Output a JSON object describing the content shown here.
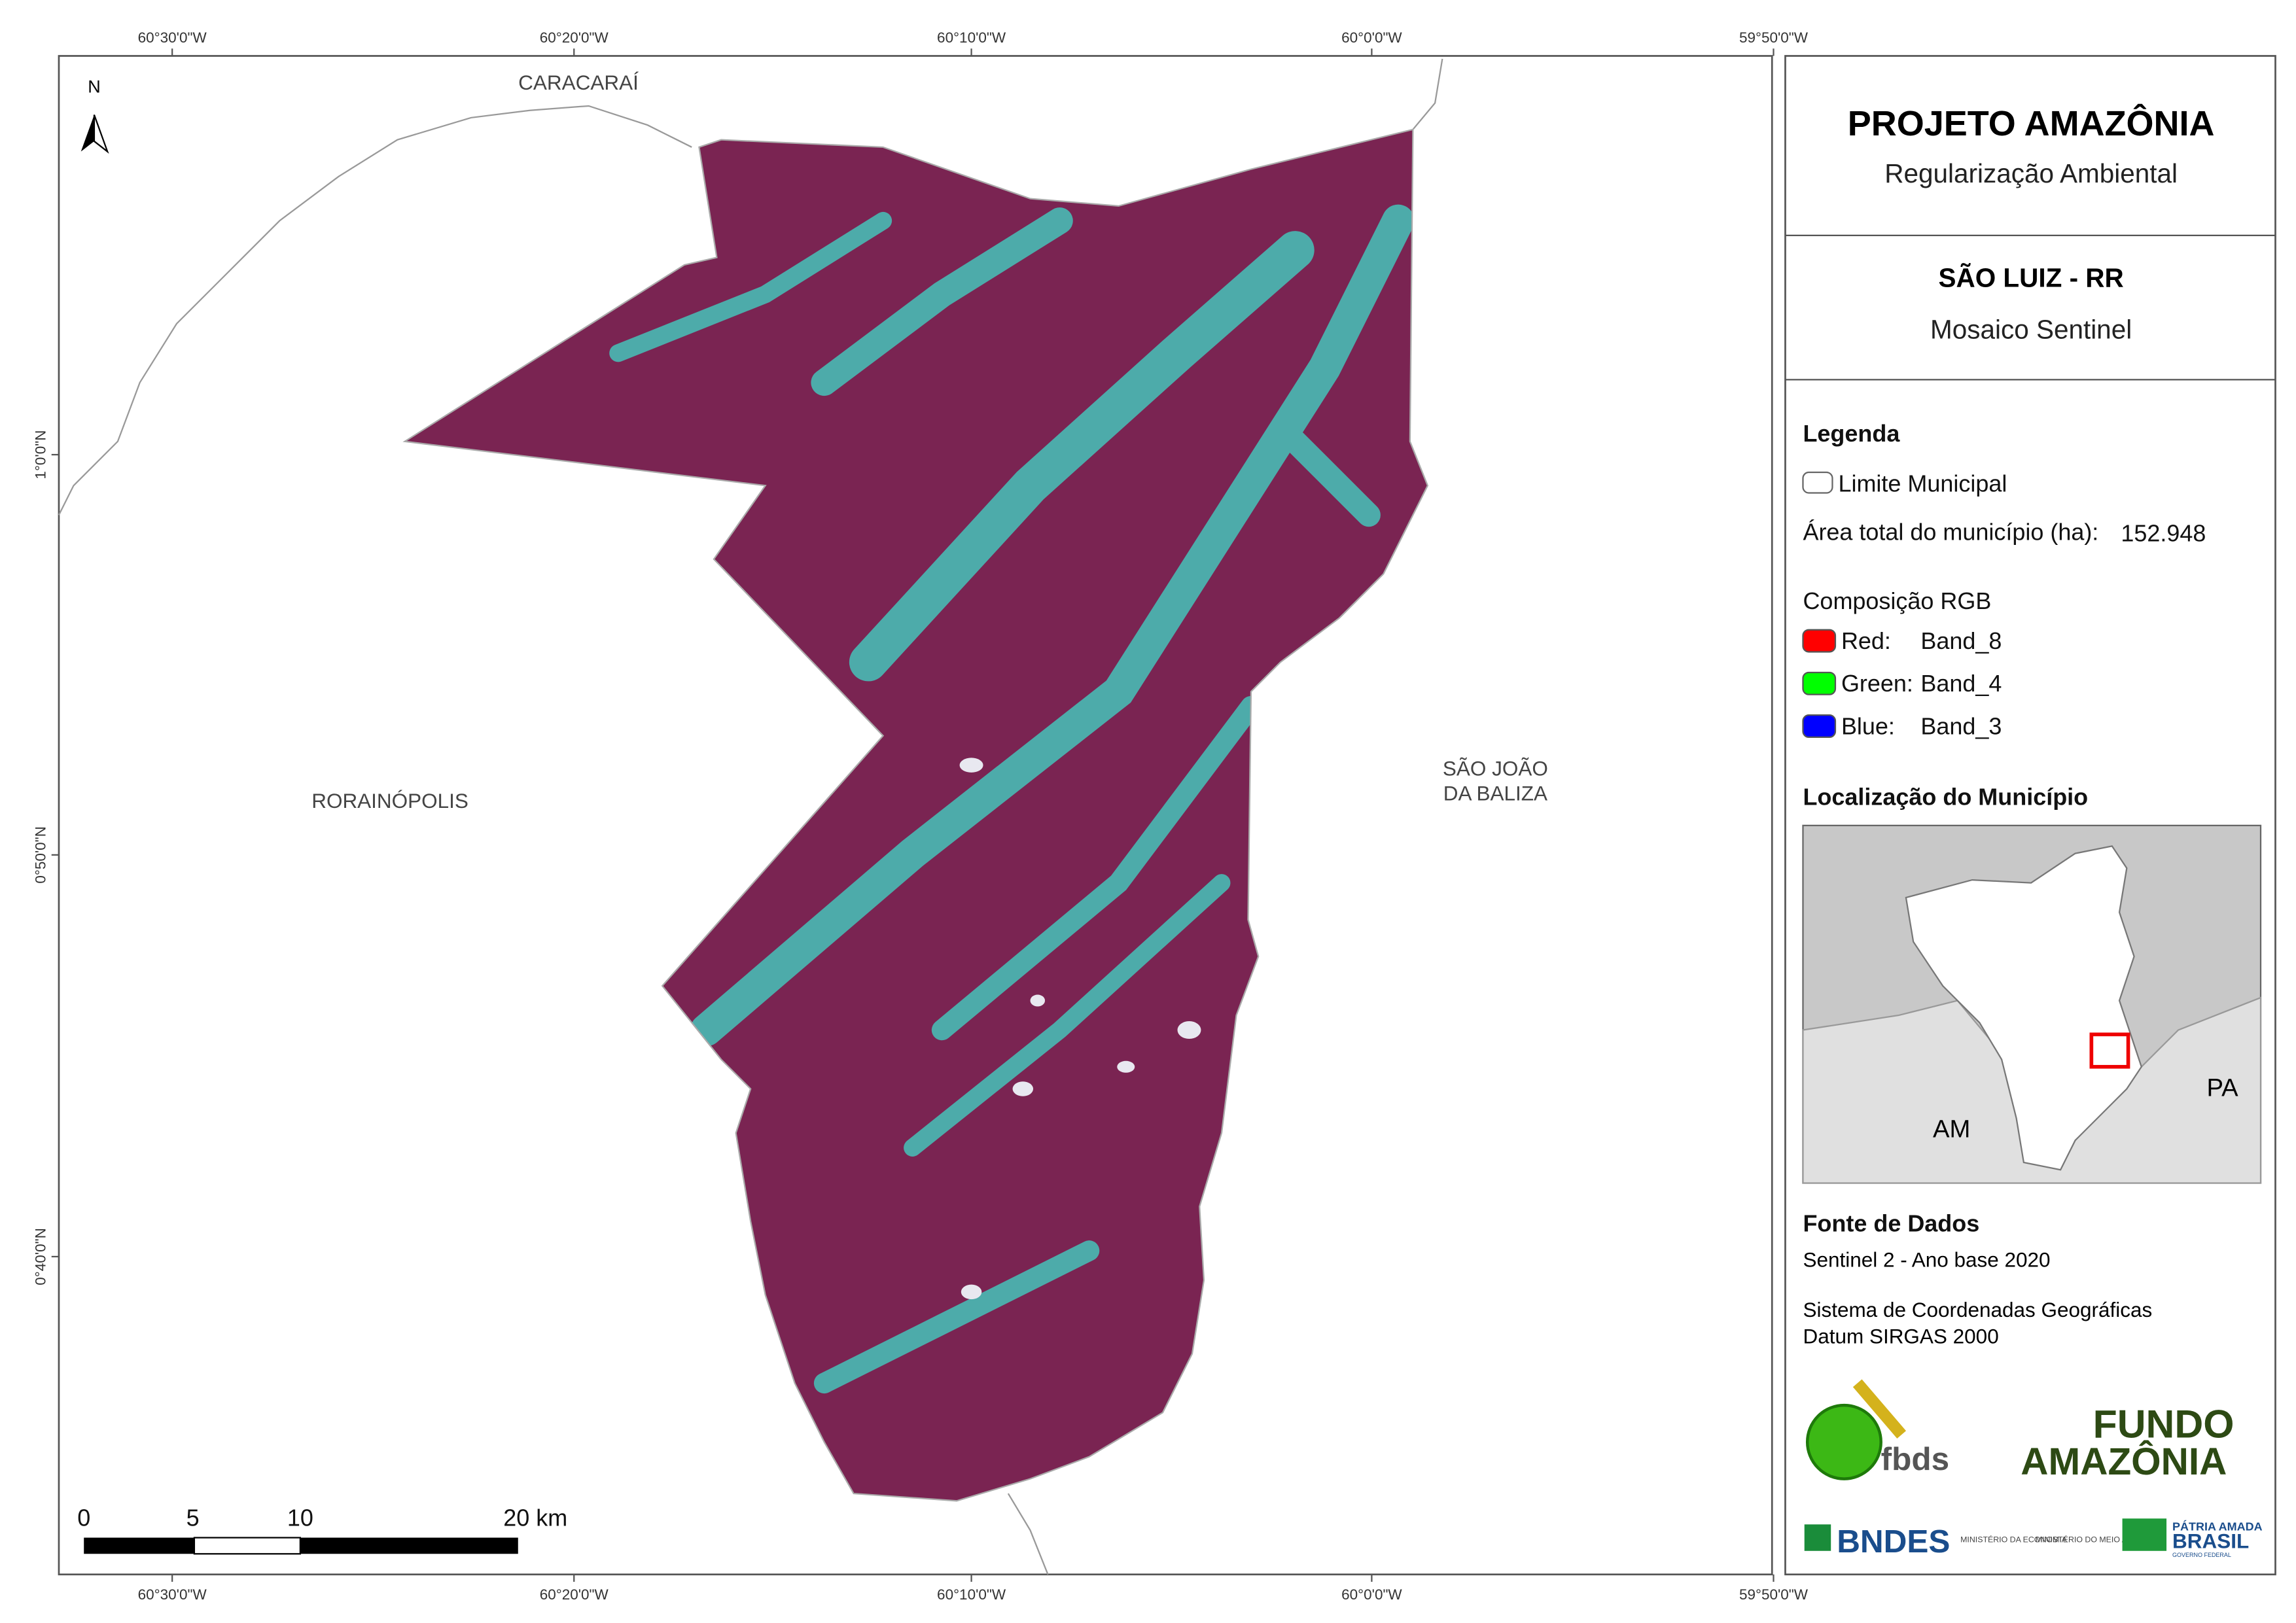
{
  "map": {
    "top_ticks": [
      "60°30'0\"W",
      "60°20'0\"W",
      "60°10'0\"W",
      "60°0'0\"W",
      "59°50'0\"W"
    ],
    "bottom_ticks": [
      "60°30'0\"W",
      "60°20'0\"W",
      "60°10'0\"W",
      "60°0'0\"W",
      "59°50'0\"W"
    ],
    "left_ticks": [
      "1°0'0\"N",
      "0°50'0\"N",
      "0°40'0\"N"
    ],
    "north": "N",
    "places": {
      "caracarai": "CARACARAÍ",
      "rorainopolis": "RORAINÓPOLIS",
      "sao_joao": [
        "SÃO JOÃO",
        "DA BALIZA"
      ]
    },
    "scale_labels": [
      "0",
      "5",
      "10",
      "20 km"
    ]
  },
  "panel": {
    "title": "PROJETO AMAZÔNIA",
    "subtitle": "Regularização Ambiental",
    "municipality": "SÃO LUIZ - RR",
    "product": "Mosaico Sentinel",
    "legend_title": "Legenda",
    "boundary": "Limite Municipal",
    "area_label": "Área total do município (ha):",
    "area_value": "152.948",
    "rgb_title": "Composição RGB",
    "bands": [
      {
        "label": "Red:",
        "band": "Band_8"
      },
      {
        "label": "Green:",
        "band": "Band_4"
      },
      {
        "label": "Blue:",
        "band": "Band_3"
      }
    ],
    "location_title": "Localização do Município",
    "inset_labels": [
      "AM",
      "PA"
    ],
    "sources_title": "Fonte de Dados",
    "source": "Sentinel 2 - Ano base 2020",
    "crs": [
      "Sistema de Coordenadas Geográficas",
      "Datum SIRGAS 2000"
    ],
    "logos": {
      "fbds": "fbds",
      "fundo": "FUNDO",
      "amazonia": "AMAZÔNIA",
      "bndes": "BNDES",
      "min_eco": "MINISTÉRIO DA ECONOMIA",
      "min_ma": "MINISTÉRIO DO MEIO AMBIENTE",
      "patria": "PÁTRIA AMADA",
      "brasil": "BRASIL",
      "gov": "GOVERNO FEDERAL"
    }
  }
}
